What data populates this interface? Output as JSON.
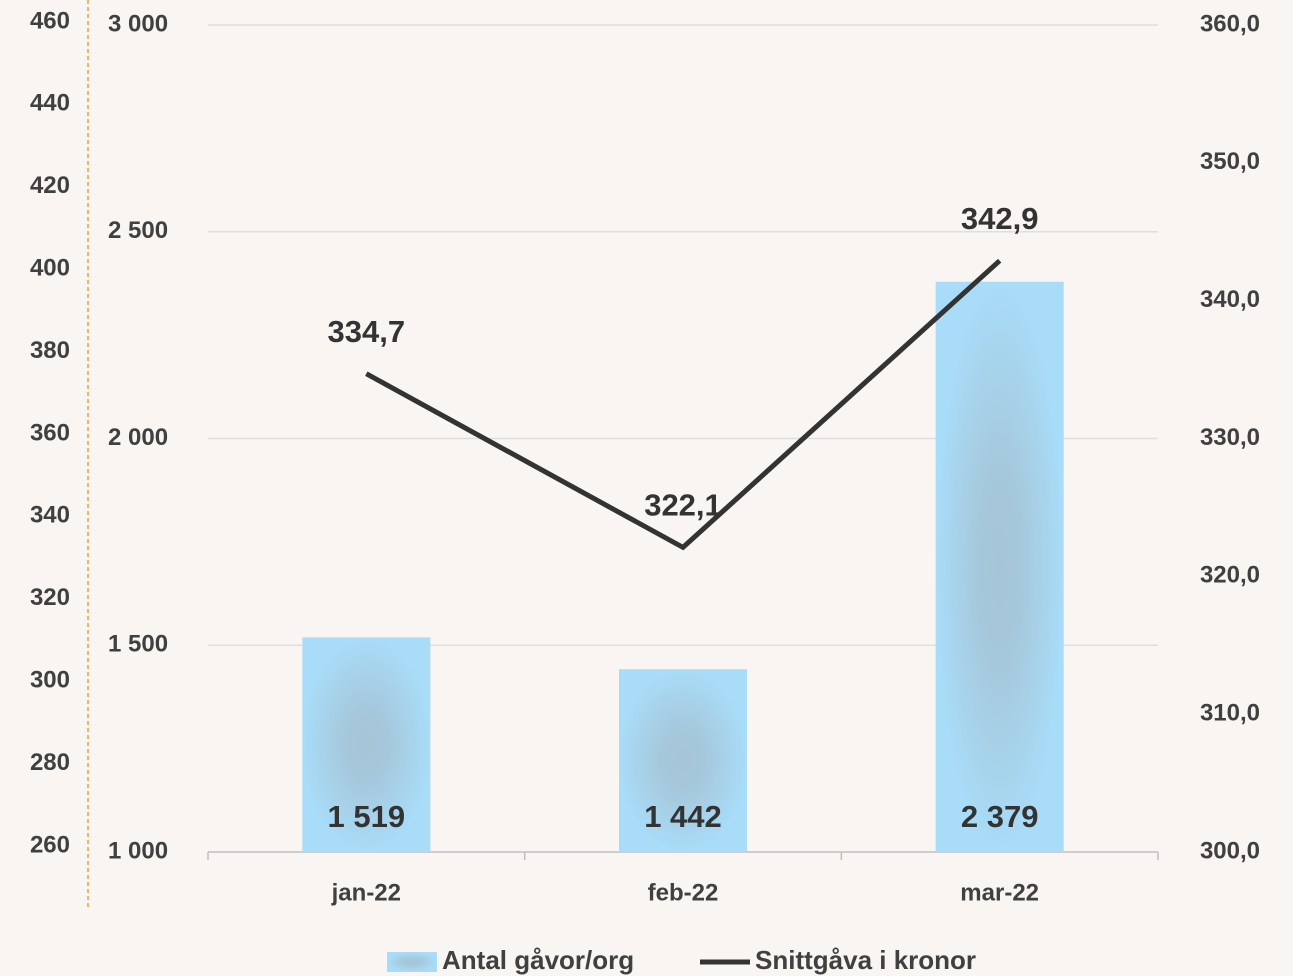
{
  "chart_data": {
    "type": "bar_line",
    "categories": [
      "jan-22",
      "feb-22",
      "mar-22"
    ],
    "series": [
      {
        "name": "Antal gåvor/org",
        "type": "bar",
        "color": "#a8dcf8",
        "values": [
          1519,
          1442,
          2379
        ],
        "value_labels": [
          "1 519",
          "1 442",
          "2 379"
        ]
      },
      {
        "name": "Snittgåva i kronor",
        "type": "line",
        "axis": "y2",
        "color": "#333333",
        "values": [
          334.7,
          322.1,
          342.9
        ],
        "value_labels": [
          "334,7",
          "322,1",
          "342,9"
        ]
      }
    ],
    "ylim": [
      1000,
      3000
    ],
    "yticks": [
      {
        "value": 1000,
        "label": "1 000"
      },
      {
        "value": 1500,
        "label": "1 500"
      },
      {
        "value": 2000,
        "label": "2 000"
      },
      {
        "value": 2500,
        "label": "2 500"
      },
      {
        "value": 3000,
        "label": "3 000"
      }
    ],
    "y2lim": [
      300,
      360
    ],
    "y2ticks": [
      {
        "value": 300,
        "label": "300,0"
      },
      {
        "value": 310,
        "label": "310,0"
      },
      {
        "value": 320,
        "label": "320,0"
      },
      {
        "value": 330,
        "label": "330,0"
      },
      {
        "value": 340,
        "label": "340,0"
      },
      {
        "value": 350,
        "label": "350,0"
      },
      {
        "value": 360,
        "label": "360,0"
      }
    ],
    "y3lim": [
      260,
      460
    ],
    "y3ticks": [
      260,
      280,
      300,
      320,
      340,
      360,
      380,
      400,
      420,
      440,
      460
    ],
    "grid": true
  }
}
